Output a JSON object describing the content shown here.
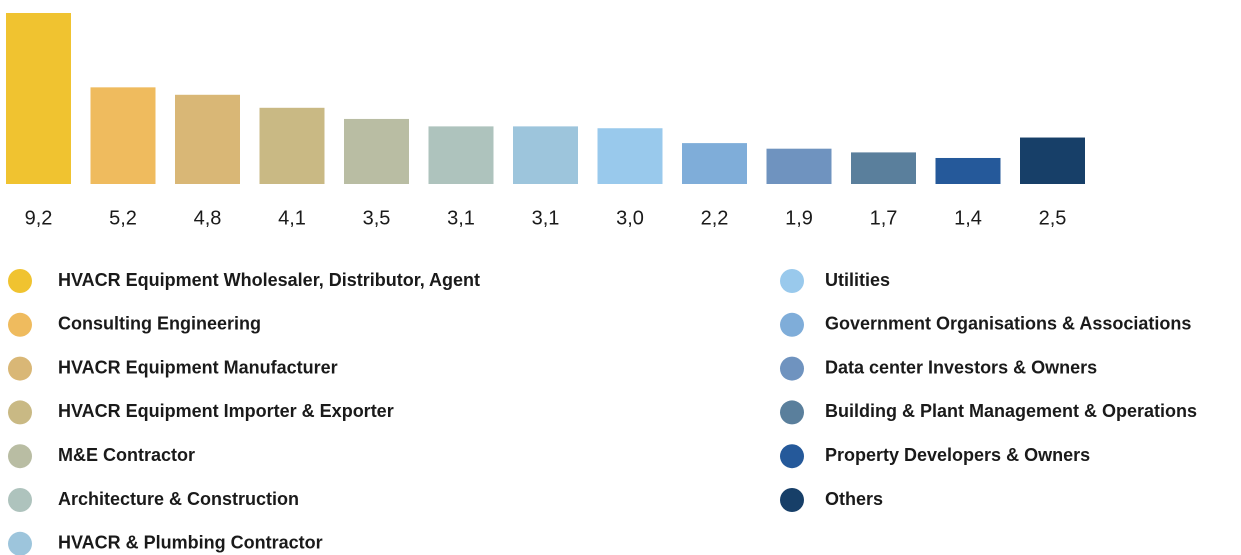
{
  "chart_data": {
    "type": "bar",
    "categories": [
      "HVACR Equipment Wholesaler, Distributor, Agent",
      "Consulting Engineering",
      "HVACR Equipment Manufacturer",
      "HVACR Equipment Importer & Exporter",
      "M&E Contractor",
      "Architecture & Construction",
      "HVACR & Plumbing Contractor",
      "Utilities",
      "Government Organisations & Associations",
      "Data center Investors & Owners",
      "Building & Plant Management & Operations",
      "Property Developers & Owners",
      "Others"
    ],
    "values": [
      9.2,
      5.2,
      4.8,
      4.1,
      3.5,
      3.1,
      3.1,
      3.0,
      2.2,
      1.9,
      1.7,
      1.4,
      2.5
    ],
    "value_labels": [
      "9,2",
      "5,2",
      "4,8",
      "4,1",
      "3,5",
      "3,1",
      "3,1",
      "3,0",
      "2,2",
      "1,9",
      "1,7",
      "1,4",
      "2,5"
    ],
    "colors": [
      "#f0c330",
      "#efbb5e",
      "#d9b776",
      "#c9b984",
      "#b9bda3",
      "#aec3bd",
      "#9dc5dc",
      "#99c9ec",
      "#7fadd9",
      "#6f93bf",
      "#5a7f9c",
      "#25599a",
      "#173f68"
    ]
  }
}
